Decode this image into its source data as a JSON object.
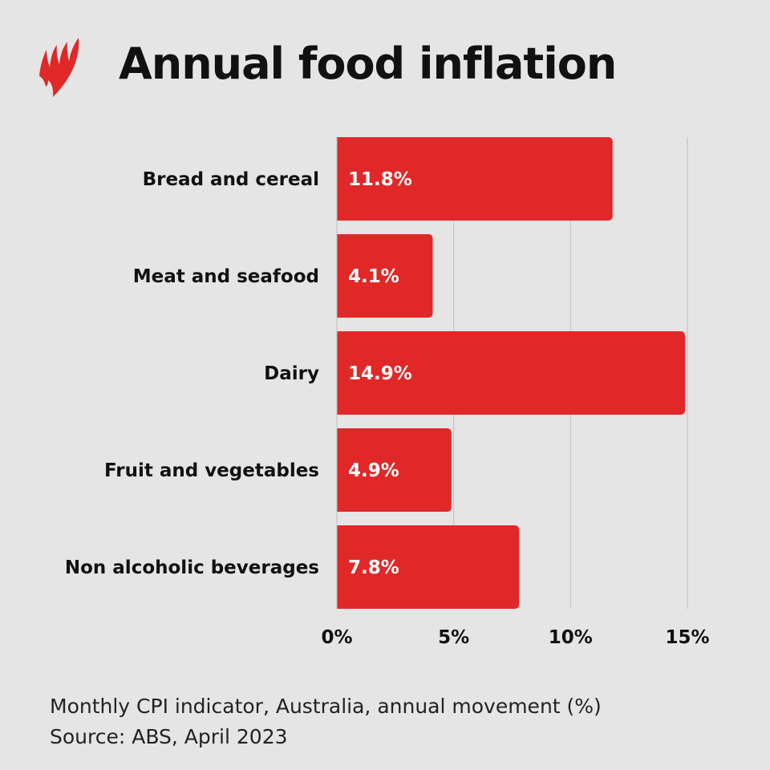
{
  "brand": {
    "logo": "SBS",
    "logo_color": "#e02828"
  },
  "chart_data": {
    "type": "bar",
    "orientation": "horizontal",
    "title": "Annual food inflation",
    "categories": [
      "Bread and cereal",
      "Meat and seafood",
      "Dairy",
      "Fruit and vegetables",
      "Non alcoholic beverages"
    ],
    "values": [
      11.8,
      4.1,
      14.9,
      4.9,
      7.8
    ],
    "value_labels": [
      "11.8%",
      "4.1%",
      "14.9%",
      "4.9%",
      "7.8%"
    ],
    "xlim": [
      0,
      15
    ],
    "xticks": [
      0,
      5,
      10,
      15
    ],
    "xtick_labels": [
      "0%",
      "5%",
      "10%",
      "15%"
    ],
    "grid": true,
    "bar_color": "#e02828"
  },
  "footer": {
    "description": "Monthly CPI indicator, Australia, annual movement (%)",
    "source": "Source: ABS, April 2023"
  }
}
